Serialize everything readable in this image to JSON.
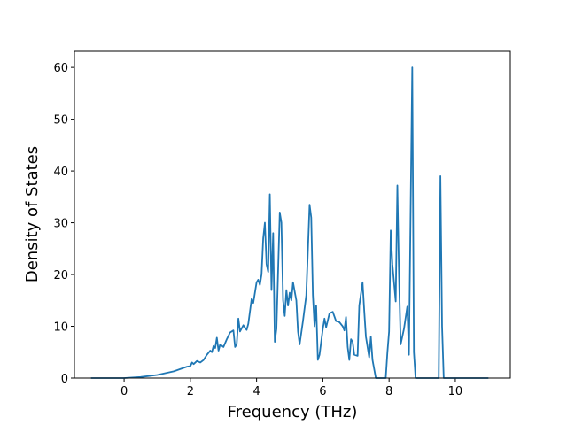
{
  "chart_data": {
    "type": "line",
    "xlabel": "Frequency (THz)",
    "ylabel": "Density of States",
    "x": [
      -1,
      0,
      0.5,
      1,
      1.5,
      1.9,
      2.0,
      2.05,
      2.1,
      2.2,
      2.3,
      2.4,
      2.5,
      2.6,
      2.65,
      2.7,
      2.75,
      2.8,
      2.85,
      2.9,
      3.0,
      3.1,
      3.2,
      3.3,
      3.35,
      3.4,
      3.45,
      3.5,
      3.6,
      3.7,
      3.75,
      3.85,
      3.9,
      4.0,
      4.05,
      4.1,
      4.15,
      4.2,
      4.25,
      4.3,
      4.35,
      4.4,
      4.45,
      4.5,
      4.55,
      4.6,
      4.7,
      4.75,
      4.8,
      4.85,
      4.9,
      4.95,
      5.0,
      5.05,
      5.1,
      5.2,
      5.25,
      5.3,
      5.4,
      5.5,
      5.6,
      5.65,
      5.7,
      5.75,
      5.8,
      5.85,
      5.9,
      6.0,
      6.05,
      6.1,
      6.2,
      6.3,
      6.4,
      6.5,
      6.6,
      6.65,
      6.7,
      6.75,
      6.8,
      6.85,
      6.9,
      6.95,
      7.05,
      7.1,
      7.2,
      7.25,
      7.3,
      7.4,
      7.45,
      7.5,
      7.6,
      7.9,
      7.95,
      8.0,
      8.05,
      8.1,
      8.2,
      8.25,
      8.3,
      8.35,
      8.45,
      8.55,
      8.6,
      8.7,
      8.75,
      8.8,
      9.5,
      9.55,
      9.6,
      9.65,
      11
    ],
    "series": [
      {
        "color": "#1f77b4",
        "values": [
          0,
          0,
          0.2,
          0.6,
          1.3,
          2.2,
          2.3,
          3,
          2.7,
          3.3,
          3.0,
          3.5,
          4.5,
          5.3,
          5.0,
          6.2,
          5.8,
          7.8,
          5.3,
          6.5,
          6.0,
          7.5,
          8.8,
          9.2,
          6.0,
          6.5,
          11.5,
          9.0,
          10.2,
          9.3,
          10.5,
          15.3,
          14.5,
          18.5,
          19,
          18,
          20,
          27,
          30,
          22,
          20.5,
          35.5,
          17,
          28,
          7,
          9.5,
          32,
          30,
          15,
          12,
          17,
          14,
          16.5,
          15,
          18.5,
          15,
          9,
          6.5,
          11,
          16,
          33.5,
          31,
          16,
          10,
          14,
          3.5,
          4.5,
          9.5,
          11.5,
          9.8,
          12.5,
          12.8,
          11,
          10.8,
          10,
          9.2,
          11.8,
          6,
          3.5,
          7.5,
          7,
          4.5,
          4.3,
          14,
          18.5,
          13,
          8,
          4,
          8,
          3.5,
          0,
          0,
          5,
          9,
          28.5,
          22,
          14.8,
          37.2,
          20,
          6.5,
          9.5,
          13.8,
          4.5,
          60,
          5,
          0,
          0,
          39,
          10,
          0,
          0
        ]
      }
    ],
    "xlim": [
      -1.5,
      11.66
    ],
    "ylim": [
      0,
      63.1
    ],
    "xticks": [
      0,
      2,
      4,
      6,
      8,
      10
    ],
    "yticks": [
      0,
      10,
      20,
      30,
      40,
      50,
      60
    ]
  }
}
